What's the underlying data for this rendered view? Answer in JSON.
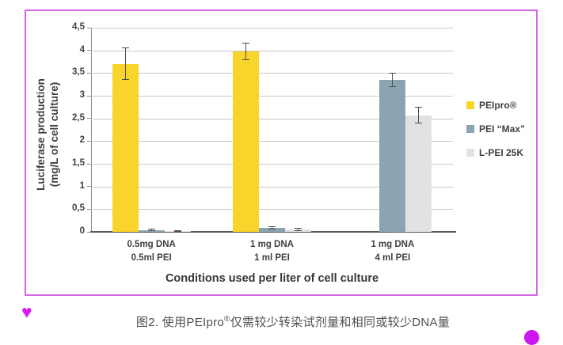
{
  "chart_data": {
    "type": "bar",
    "title": "",
    "ylabel_line1": "Luciferase production",
    "ylabel_line2": "(mg/L of cell culture)",
    "xlabel": "Conditions used per liter of cell culture",
    "ylim": [
      0,
      4.5
    ],
    "ytick_step": 0.5,
    "ytick_labels": [
      "0",
      "0,5",
      "1",
      "1,5",
      "2",
      "2,5",
      "3",
      "3,5",
      "4",
      "4,5"
    ],
    "grid": true,
    "legend_position": "right",
    "categories": [
      {
        "line1": "0.5mg DNA",
        "line2": "0.5ml PEI"
      },
      {
        "line1": "1 mg DNA",
        "line2": "1 ml PEI"
      },
      {
        "line1": "1 mg DNA",
        "line2": "4 ml PEI"
      }
    ],
    "series": [
      {
        "name": "PEIpro®",
        "color": "#f9d42b",
        "values": [
          3.7,
          3.98,
          0
        ],
        "errors": [
          0.35,
          0.18,
          0
        ]
      },
      {
        "name": "PEI “Max”",
        "color": "#8ba4b1",
        "values": [
          0.04,
          0.09,
          3.35
        ],
        "errors": [
          0.02,
          0.03,
          0.15
        ]
      },
      {
        "name": "L-PEI 25K",
        "color": "#e2e2e5",
        "values": [
          0.02,
          0.05,
          2.57
        ],
        "errors": [
          0.01,
          0.02,
          0.17
        ]
      }
    ]
  },
  "caption": {
    "prefix": "图2. 使用PEIpro",
    "reg": "®",
    "suffix": "仅需较少转染试剂量和相同或较少DNA量"
  },
  "decorations": {
    "heart_glyph": "♥",
    "heart_color": "#d71bef",
    "dot_color": "#cb18ee",
    "border_color": "#d965e6"
  }
}
